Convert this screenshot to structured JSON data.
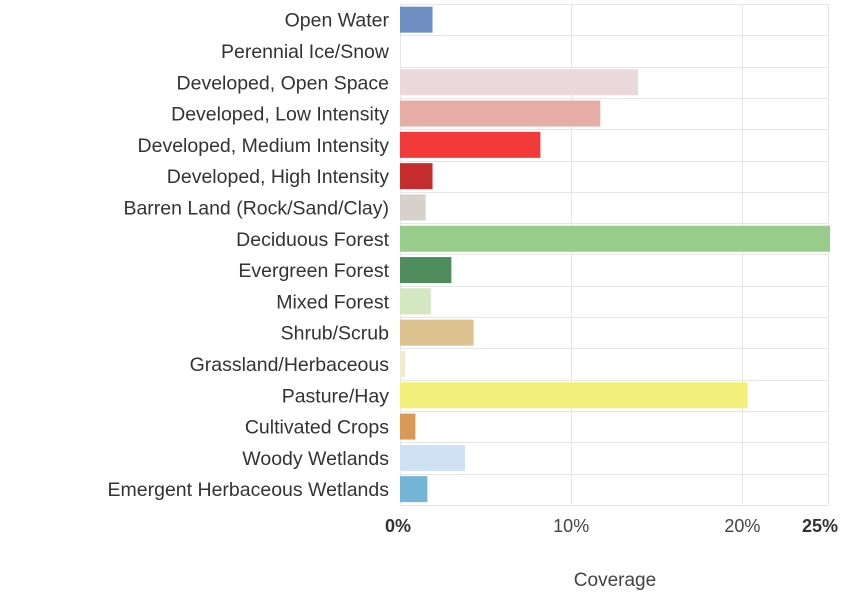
{
  "chart_data": {
    "type": "bar",
    "orientation": "horizontal",
    "xlabel": "Coverage",
    "xlim": [
      0,
      25
    ],
    "grid": true,
    "x_ticks": [
      {
        "value": 0,
        "label": "0%",
        "bold": true
      },
      {
        "value": 10,
        "label": "10%",
        "bold": false
      },
      {
        "value": 20,
        "label": "20%",
        "bold": false
      },
      {
        "value": 25,
        "label": "25%",
        "bold": true
      }
    ],
    "categories": [
      "Open Water",
      "Perennial Ice/Snow",
      "Developed, Open Space",
      "Developed, Low Intensity",
      "Developed, Medium Intensity",
      "Developed, High Intensity",
      "Barren Land (Rock/Sand/Clay)",
      "Deciduous Forest",
      "Evergreen Forest",
      "Mixed Forest",
      "Shrub/Scrub",
      "Grassland/Herbaceous",
      "Pasture/Hay",
      "Cultivated Crops",
      "Woody Wetlands",
      "Emergent Herbaceous Wetlands"
    ],
    "values": [
      1.9,
      0,
      13.9,
      11.7,
      8.2,
      1.9,
      1.5,
      25.2,
      3.0,
      1.8,
      4.3,
      0.3,
      20.3,
      0.9,
      3.8,
      1.6
    ],
    "colors": [
      "#6f8fc2",
      "#ffffff",
      "#ead8da",
      "#e5ada6",
      "#f33a3a",
      "#c52d2d",
      "#d6d1cb",
      "#97cc8a",
      "#4f8c5c",
      "#d3e8c2",
      "#dcc28f",
      "#f2ead0",
      "#f2f07a",
      "#d89a57",
      "#cfe2f3",
      "#74b4d4"
    ]
  }
}
